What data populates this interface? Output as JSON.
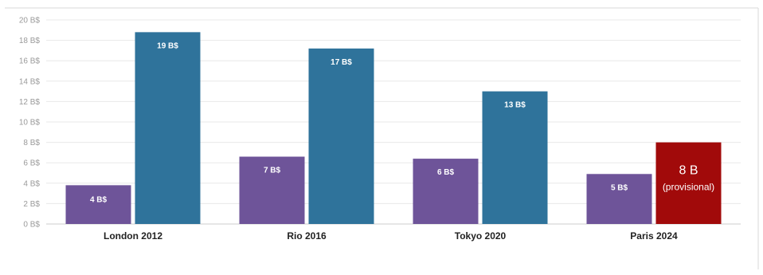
{
  "chart_data": {
    "type": "bar",
    "categories": [
      "London 2012",
      "Rio 2016",
      "Tokyo 2020",
      "Paris 2024"
    ],
    "ylim": [
      0,
      20
    ],
    "y_ticks": [
      0,
      2,
      4,
      6,
      8,
      10,
      12,
      14,
      16,
      18,
      20
    ],
    "y_tick_labels": [
      "0 B$",
      "2 B$",
      "4 B$",
      "6 B$",
      "8 B$",
      "10 B$",
      "12 B$",
      "14 B$",
      "16 B$",
      "18 B$",
      "20 B$"
    ],
    "grid": true,
    "series": [
      {
        "values": [
          3.8,
          6.6,
          6.4,
          4.9
        ],
        "labels": [
          "4 B$",
          "7 B$",
          "6 B$",
          "5 B$"
        ],
        "color": "#6e5499"
      },
      {
        "values": [
          18.8,
          17.2,
          13.0,
          8.0
        ],
        "labels": [
          "19 B$",
          "17 B$",
          "13 B$",
          "8 B"
        ],
        "colors": [
          "#2f739b",
          "#2f739b",
          "#2f739b",
          "#a10a0a"
        ]
      }
    ],
    "annotation": {
      "text": "(provisional)",
      "category": "Paris 2024"
    }
  },
  "colors": {
    "grid": "#e8e8e8",
    "axis": "#cccccc",
    "tick_text": "#9a9a9a",
    "category_text": "#222222",
    "bar_label": "#ffffff",
    "frame": "#d9d9d9"
  }
}
